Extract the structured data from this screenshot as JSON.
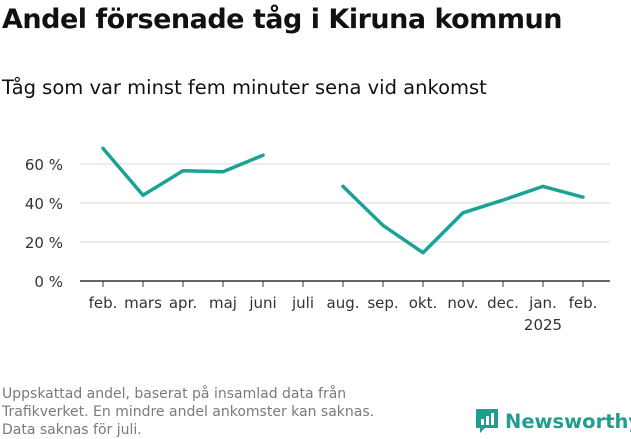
{
  "title": "Andel försenade tåg i Kiruna kommun",
  "subtitle": "Tåg som var minst fem minuter sena vid ankomst",
  "footnote": [
    "Uppskattad andel, baserat på insamlad data från",
    "Trafikverket. En mindre andel ankomster kan saknas.",
    "Data saknas för juli."
  ],
  "brand": "Newsworthy",
  "colors": {
    "line": "#1aa394",
    "brand": "#1f9d8f",
    "grid": "#d9d9d9",
    "axis": "#333333"
  },
  "chart_data": {
    "type": "line",
    "categories": [
      "feb.",
      "mars",
      "apr.",
      "maj",
      "juni",
      "juli",
      "aug.",
      "sep.",
      "okt.",
      "nov.",
      "dec.",
      "jan.",
      "feb."
    ],
    "year_labels": [
      "",
      "",
      "",
      "",
      "",
      "",
      "",
      "",
      "",
      "",
      "",
      "2025",
      ""
    ],
    "series": [
      {
        "values": [
          68,
          44,
          56.5,
          56,
          64.5,
          null,
          48.5,
          28.5,
          14.5,
          35,
          41.5,
          48.5,
          43
        ]
      }
    ],
    "ylim": [
      0,
      60
    ],
    "yticks": [
      0,
      20,
      40,
      60
    ],
    "ytick_labels": [
      "0 %",
      "20 %",
      "40 %",
      "60 %"
    ],
    "grid": true,
    "xlabel": "",
    "ylabel": ""
  }
}
